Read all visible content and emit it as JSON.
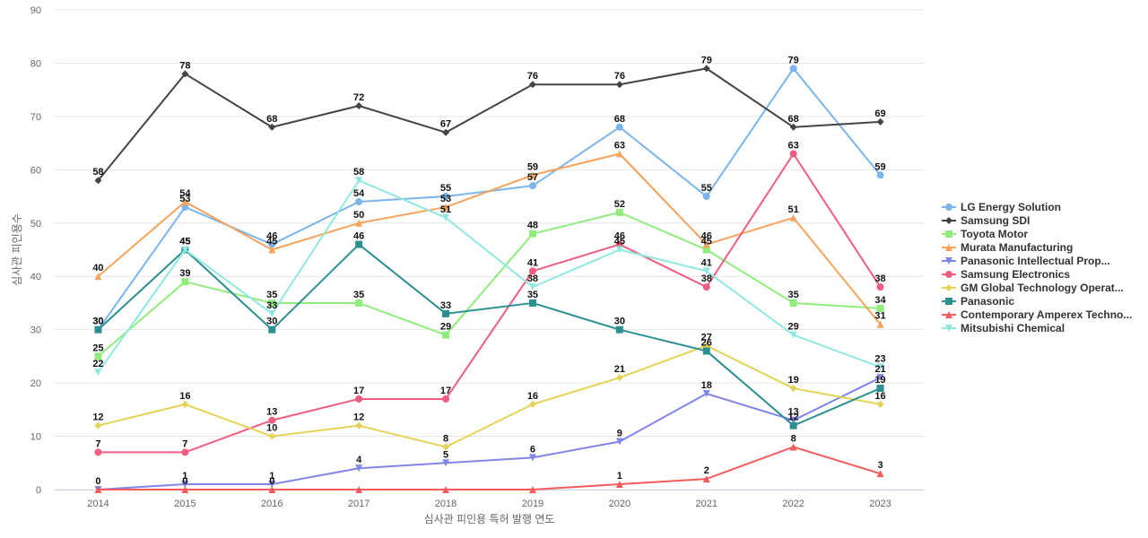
{
  "chart_data": {
    "type": "line",
    "title": "",
    "xlabel": "심사관 피인용 특허 발행 연도",
    "ylabel": "심사관 피인용수",
    "ylim": [
      0,
      90
    ],
    "yticks": [
      0,
      10,
      20,
      30,
      40,
      50,
      60,
      70,
      80,
      90
    ],
    "grid": true,
    "legend_position": "right",
    "categories": [
      "2014",
      "2015",
      "2016",
      "2017",
      "2018",
      "2019",
      "2020",
      "2021",
      "2022",
      "2023"
    ],
    "series": [
      {
        "name": "LG Energy Solution",
        "color": "#7cb5ec",
        "marker": "circle",
        "values": [
          30,
          53,
          46,
          54,
          55,
          57,
          68,
          55,
          79,
          59
        ]
      },
      {
        "name": "Samsung SDI",
        "color": "#434348",
        "marker": "diamond",
        "values": [
          58,
          78,
          68,
          72,
          67,
          76,
          76,
          79,
          68,
          69
        ]
      },
      {
        "name": "Toyota Motor",
        "color": "#90ed7d",
        "marker": "square",
        "values": [
          25,
          39,
          35,
          35,
          29,
          48,
          52,
          45,
          35,
          34
        ]
      },
      {
        "name": "Murata Manufacturing",
        "color": "#f7a35c",
        "marker": "triangle",
        "values": [
          40,
          54,
          45,
          50,
          53,
          59,
          63,
          46,
          51,
          31
        ]
      },
      {
        "name": "Panasonic Intellectual Prop...",
        "color": "#8085e9",
        "marker": "triangle-down",
        "values": [
          0,
          1,
          1,
          4,
          5,
          6,
          9,
          18,
          13,
          21
        ]
      },
      {
        "name": "Samsung Electronics",
        "color": "#f15c80",
        "marker": "circle",
        "values": [
          7,
          7,
          13,
          17,
          17,
          41,
          46,
          38,
          63,
          38
        ]
      },
      {
        "name": "GM Global Technology Operat...",
        "color": "#e4d354",
        "marker": "diamond",
        "values": [
          12,
          16,
          10,
          12,
          8,
          16,
          21,
          27,
          19,
          16
        ]
      },
      {
        "name": "Panasonic",
        "color": "#2b908f",
        "marker": "square",
        "values": [
          30,
          45,
          30,
          46,
          33,
          35,
          30,
          26,
          12,
          19
        ]
      },
      {
        "name": "Contemporary Amperex Techno...",
        "color": "#f45b5b",
        "marker": "triangle",
        "values": [
          0,
          0,
          0,
          0,
          0,
          0,
          1,
          2,
          8,
          3
        ]
      },
      {
        "name": "Mitsubishi Chemical",
        "color": "#91e8e1",
        "marker": "triangle-down",
        "values": [
          22,
          45,
          33,
          58,
          51,
          38,
          45,
          41,
          29,
          23
        ]
      }
    ],
    "data_labels": [
      {
        "series": 0,
        "indices": [
          0,
          1,
          2,
          3,
          4,
          5,
          6,
          7,
          8,
          9
        ]
      },
      {
        "series": 1,
        "indices": [
          0,
          1,
          2,
          3,
          4,
          5,
          6,
          7,
          8,
          9
        ]
      },
      {
        "series": 2,
        "indices": [
          0,
          1,
          2,
          3,
          4,
          5,
          6,
          7,
          8,
          9
        ]
      },
      {
        "series": 3,
        "indices": [
          0,
          1,
          2,
          3,
          4,
          5,
          6,
          7,
          8,
          9
        ]
      },
      {
        "series": 4,
        "indices": [
          0,
          1,
          2,
          3,
          4,
          5,
          6,
          7,
          8,
          9
        ]
      },
      {
        "series": 5,
        "indices": [
          0,
          1,
          2,
          3,
          4,
          5,
          6,
          7,
          8,
          9
        ]
      },
      {
        "series": 6,
        "indices": [
          0,
          1,
          2,
          3,
          4,
          5,
          6,
          7,
          8,
          9
        ]
      },
      {
        "series": 7,
        "indices": [
          0,
          1,
          2,
          3,
          4,
          5,
          6,
          7,
          8,
          9
        ]
      },
      {
        "series": 8,
        "indices": [
          1,
          2,
          6,
          7,
          8,
          9
        ]
      },
      {
        "series": 9,
        "indices": [
          0,
          1,
          2,
          3,
          4,
          5,
          6,
          7,
          8,
          9
        ]
      }
    ]
  }
}
